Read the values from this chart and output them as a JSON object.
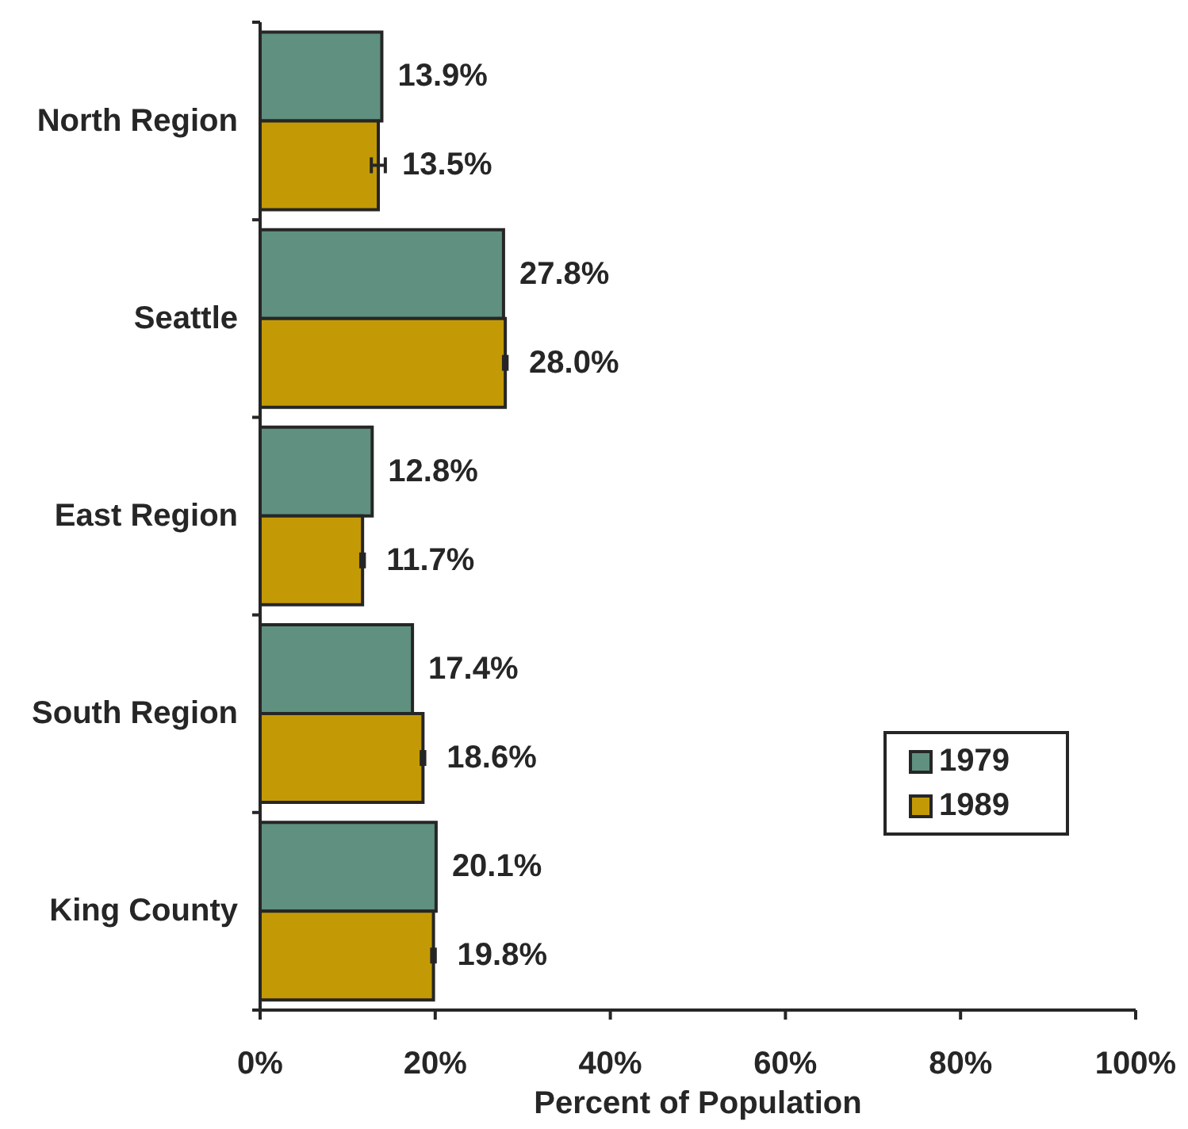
{
  "chart_data": {
    "type": "bar",
    "orientation": "horizontal",
    "xlabel": "Percent of Population",
    "categories": [
      "North Region",
      "Seattle",
      "East Region",
      "South Region",
      "King County"
    ],
    "series": [
      {
        "name": "1979",
        "color": "#5f9080",
        "values": [
          13.9,
          27.8,
          12.8,
          17.4,
          20.1
        ],
        "value_labels": [
          "13.9%",
          "27.8%",
          "12.8%",
          "17.4%",
          "20.1%"
        ]
      },
      {
        "name": "1989",
        "color": "#c39a06",
        "values": [
          13.5,
          28.0,
          11.7,
          18.6,
          19.8
        ],
        "errors": [
          0.8,
          0.2,
          0.2,
          0.2,
          0.2
        ],
        "value_labels": [
          "13.5%",
          "28.0%",
          "11.7%",
          "18.6%",
          "19.8%"
        ]
      }
    ],
    "xlim": [
      0,
      100
    ],
    "xticks": [
      {
        "value": 0,
        "label": "0%"
      },
      {
        "value": 20,
        "label": "20%"
      },
      {
        "value": 40,
        "label": "40%"
      },
      {
        "value": 60,
        "label": "60%"
      },
      {
        "value": 80,
        "label": "80%"
      },
      {
        "value": 100,
        "label": "100%"
      }
    ],
    "legend": "bottom right"
  }
}
